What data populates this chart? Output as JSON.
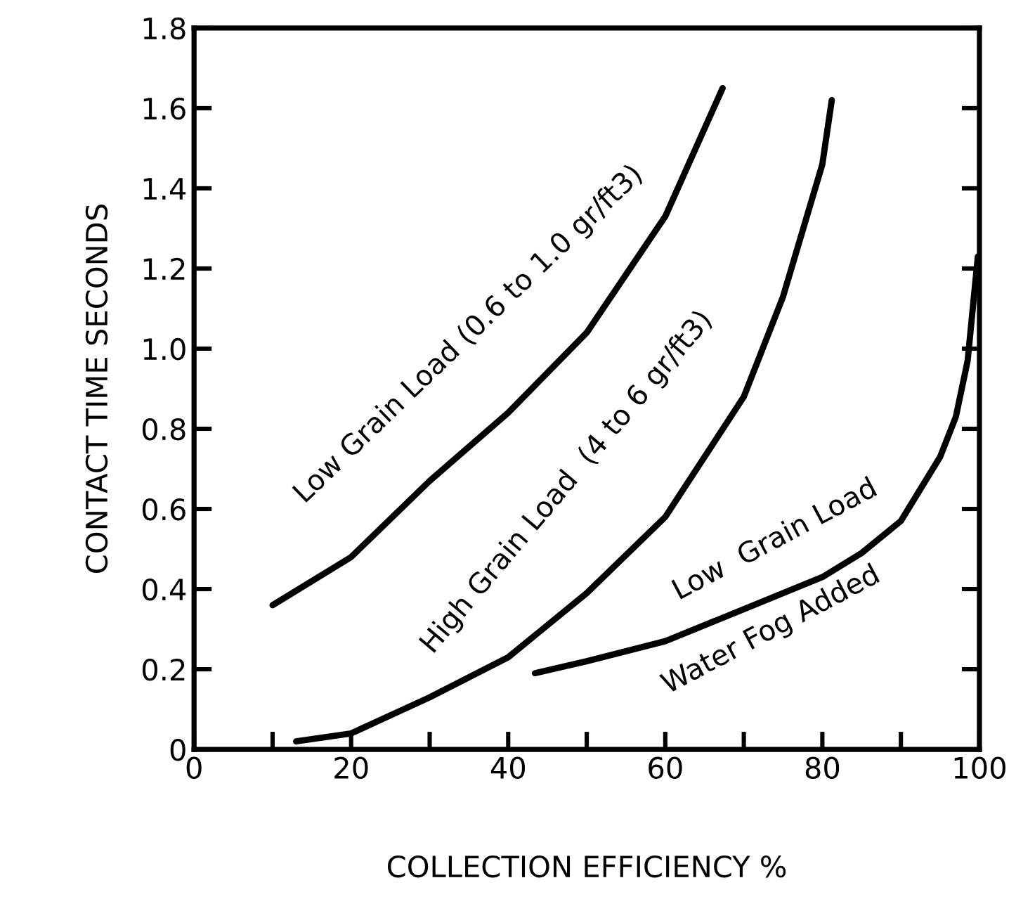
{
  "chart_data": {
    "type": "line",
    "xlabel": "COLLECTION EFFICIENCY %",
    "ylabel": "CONTACT TIME SECONDS",
    "xlim": [
      0,
      100
    ],
    "ylim": [
      0,
      1.8
    ],
    "xticks": [
      0,
      {
        "value": 10,
        "label": null
      },
      20,
      {
        "value": 30,
        "label": null
      },
      40,
      {
        "value": 50,
        "label": null
      },
      60,
      {
        "value": 70,
        "label": null
      },
      80,
      {
        "value": 90,
        "label": null
      },
      100
    ],
    "yticks": [
      0,
      0.2,
      0.4,
      0.6,
      0.8,
      {
        "value": 1,
        "label": "1.0"
      },
      1.2,
      1.4,
      1.6,
      1.8
    ],
    "grid": false,
    "legend": false,
    "marker": "none",
    "line_style": "solid",
    "series": [
      {
        "color": "#000000",
        "x": [
          10,
          20,
          30,
          40,
          50,
          60,
          67.3
        ],
        "values": [
          0.36,
          0.48,
          0.67,
          0.84,
          1.04,
          1.33,
          1.65
        ]
      },
      {
        "color": "#000000",
        "x": [
          13,
          20,
          30,
          40,
          50,
          60,
          70,
          75,
          80,
          81.2
        ],
        "values": [
          0.02,
          0.04,
          0.13,
          0.23,
          0.39,
          0.58,
          0.88,
          1.13,
          1.46,
          1.62
        ]
      },
      {
        "color": "#000000",
        "x": [
          43.4,
          50,
          60,
          70,
          80,
          85,
          90,
          95,
          97,
          98.5,
          99.5,
          99.8
        ],
        "values": [
          0.19,
          0.22,
          0.27,
          0.35,
          0.43,
          0.49,
          0.57,
          0.73,
          0.83,
          0.97,
          1.17,
          1.23
        ]
      }
    ],
    "annotations": [
      "Low Grain Load (0.6 to 1.0 gr/ft3)",
      "High Grain Load  (4 to 6 gr/ft3)",
      "Low  Grain Load",
      "Water Fog Added"
    ]
  }
}
